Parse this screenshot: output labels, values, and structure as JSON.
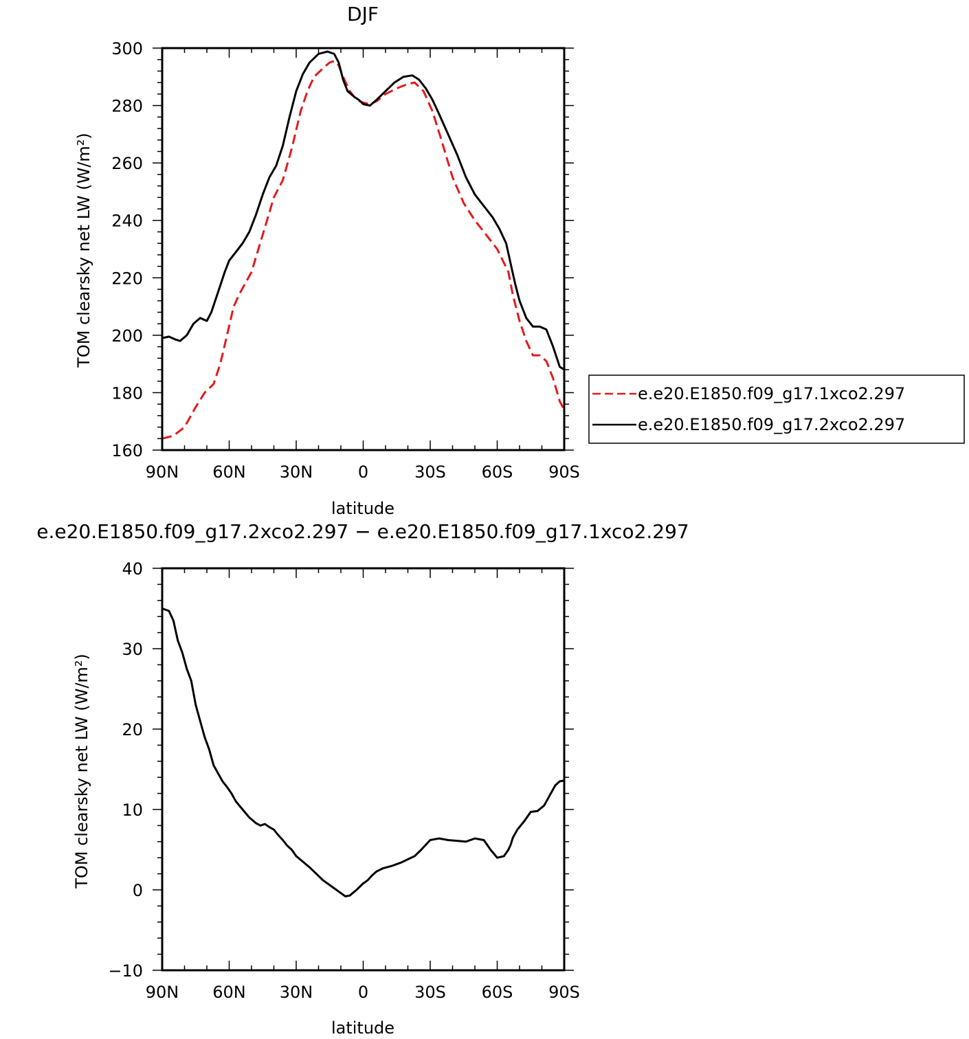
{
  "chart_data": [
    {
      "type": "line",
      "title": "DJF",
      "xlabel": "latitude",
      "ylabel": "TOM clearsky net LW (W/m²)",
      "xlim": [
        90,
        -90
      ],
      "ylim": [
        160,
        300
      ],
      "x_ticks": [
        90,
        60,
        30,
        0,
        -30,
        -60,
        -90
      ],
      "x_tick_labels": [
        "90N",
        "60N",
        "30N",
        "0",
        "30S",
        "60S",
        "90S"
      ],
      "y_ticks": [
        160,
        180,
        200,
        220,
        240,
        260,
        280,
        300
      ],
      "y_tick_labels": [
        "160",
        "180",
        "200",
        "220",
        "240",
        "260",
        "280",
        "300"
      ],
      "legend_placement": "right",
      "grid": false,
      "series": [
        {
          "name": "e.e20.E1850.f09_g17.1xco2.297",
          "color": "#e31a1c",
          "dash": "dashed",
          "x": [
            90,
            85,
            80,
            75,
            71,
            67,
            64,
            61,
            58,
            55,
            50,
            45,
            40,
            36,
            32,
            28,
            25,
            22,
            18,
            15,
            13,
            11,
            9,
            6,
            3,
            0,
            -3,
            -6,
            -10,
            -15,
            -20,
            -23,
            -27,
            -31,
            -35,
            -40,
            -45,
            -50,
            -55,
            -60,
            -65,
            -67,
            -70,
            -73,
            -76,
            -79,
            -82,
            -85,
            -88,
            -90
          ],
          "y": [
            164,
            165,
            168,
            175,
            180,
            183,
            190,
            200,
            210,
            215,
            222,
            235,
            248,
            254,
            265,
            278,
            285,
            290,
            293,
            295,
            295.5,
            294,
            290,
            285,
            282,
            281,
            280.5,
            281.5,
            284,
            286,
            287.5,
            288,
            285,
            278,
            268,
            255,
            246,
            240,
            235,
            230,
            222,
            214,
            205,
            198,
            193,
            193,
            191,
            185,
            177,
            174
          ]
        },
        {
          "name": "e.e20.E1850.f09_g17.2xco2.297",
          "color": "#000000",
          "dash": "solid",
          "x": [
            90,
            87,
            84,
            82,
            79,
            76,
            73,
            70,
            68,
            65,
            62,
            60,
            57,
            54,
            51,
            48,
            45,
            42,
            39,
            36,
            33,
            30,
            27,
            24,
            20,
            16,
            13,
            11,
            9,
            7,
            4,
            2,
            0,
            -3,
            -6,
            -10,
            -14,
            -18,
            -22,
            -25,
            -28,
            -31,
            -34,
            -38,
            -42,
            -46,
            -50,
            -54,
            -58,
            -61,
            -64,
            -66,
            -68,
            -70,
            -73,
            -76,
            -79,
            -82,
            -85,
            -88,
            -90
          ],
          "y": [
            199,
            199.5,
            198.5,
            198,
            200,
            204,
            206,
            205,
            208,
            215,
            222,
            226,
            229,
            232,
            236,
            242,
            249,
            255,
            259,
            266,
            276,
            285,
            291,
            295,
            298,
            298.8,
            298,
            295,
            289,
            285,
            283,
            282,
            280.5,
            280,
            282,
            285,
            288,
            290,
            290.5,
            289,
            286,
            282,
            277,
            270,
            263,
            255,
            249,
            245,
            241,
            237,
            232,
            225,
            218,
            212,
            206,
            203,
            203,
            202,
            196,
            189,
            188
          ]
        }
      ]
    },
    {
      "type": "line",
      "title": "e.e20.E1850.f09_g17.2xco2.297 − e.e20.E1850.f09_g17.1xco2.297",
      "xlabel": "latitude",
      "ylabel": "TOM clearsky net LW (W/m²)",
      "xlim": [
        90,
        -90
      ],
      "ylim": [
        -10,
        40
      ],
      "x_ticks": [
        90,
        60,
        30,
        0,
        -30,
        -60,
        -90
      ],
      "x_tick_labels": [
        "90N",
        "60N",
        "30N",
        "0",
        "30S",
        "60S",
        "90S"
      ],
      "y_ticks": [
        -10,
        0,
        10,
        20,
        30,
        40
      ],
      "y_tick_labels": [
        "−10",
        "0",
        "10",
        "20",
        "30",
        "40"
      ],
      "grid": false,
      "series": [
        {
          "color": "#000000",
          "dash": "solid",
          "x": [
            90,
            87,
            85,
            83,
            81,
            79,
            77,
            75,
            73,
            71,
            69,
            67,
            65,
            63,
            61,
            59,
            57,
            54,
            51,
            48,
            46,
            44,
            42,
            40,
            38,
            36,
            34,
            32,
            30,
            27,
            24,
            21,
            18,
            15,
            12,
            10,
            8,
            6,
            3,
            0,
            -2,
            -4,
            -6,
            -9,
            -13,
            -17,
            -20,
            -23,
            -26,
            -30,
            -34,
            -38,
            -42,
            -46,
            -50,
            -54,
            -57,
            -60,
            -63,
            -65,
            -66,
            -67,
            -69,
            -72,
            -75,
            -78,
            -81,
            -84,
            -86,
            -88,
            -90
          ],
          "y": [
            35,
            34.7,
            33.5,
            31,
            29.5,
            27.5,
            26,
            23,
            21,
            19,
            17.5,
            15.5,
            14.5,
            13.5,
            12.8,
            12,
            11,
            10,
            9,
            8.3,
            8,
            8.2,
            7.8,
            7.5,
            6.8,
            6.2,
            5.5,
            5,
            4.2,
            3.5,
            2.8,
            2,
            1.2,
            0.6,
            0,
            -0.4,
            -0.8,
            -0.7,
            0,
            0.8,
            1.2,
            1.8,
            2.3,
            2.7,
            3,
            3.4,
            3.8,
            4.2,
            5,
            6.2,
            6.4,
            6.2,
            6.1,
            6,
            6.4,
            6.2,
            5,
            4,
            4.2,
            5,
            5.6,
            6.5,
            7.5,
            8.5,
            9.7,
            9.8,
            10.5,
            12,
            13,
            13.5,
            13.6
          ]
        }
      ]
    }
  ]
}
